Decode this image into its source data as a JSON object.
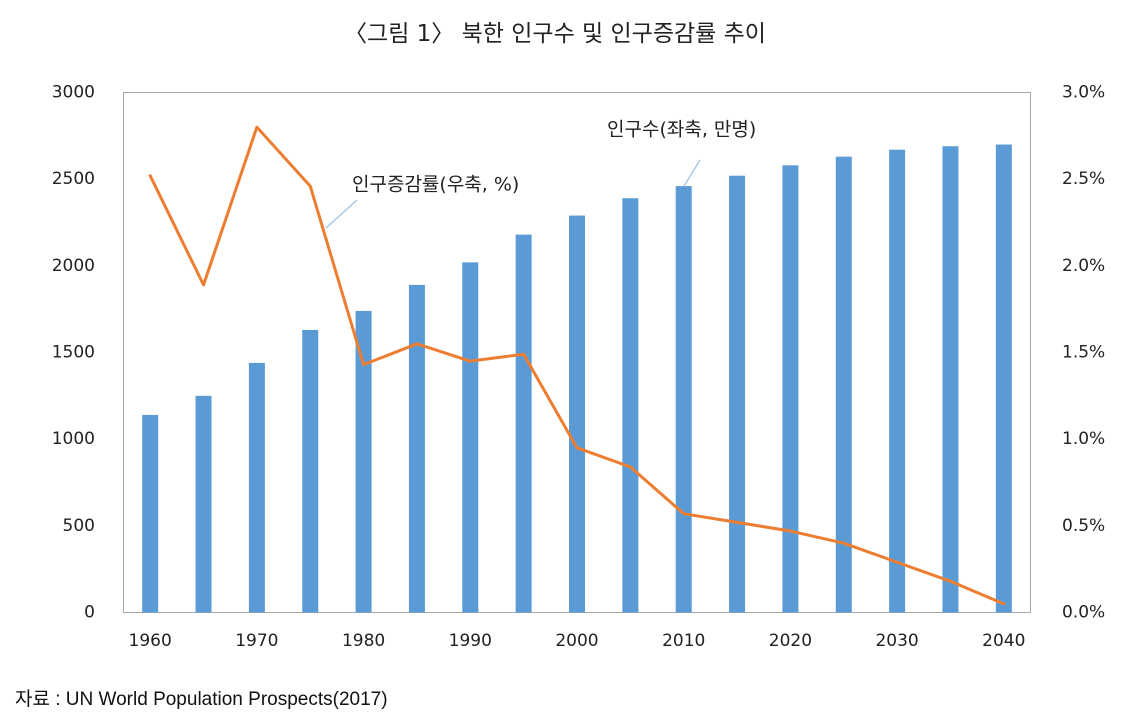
{
  "chart_data": {
    "type": "bar",
    "title": "〈그림 1〉 북한 인구수 및 인구증감률 추이",
    "x": [
      1960,
      1965,
      1970,
      1975,
      1980,
      1985,
      1990,
      1995,
      2000,
      2005,
      2010,
      2015,
      2020,
      2025,
      2030,
      2035,
      2040
    ],
    "x_ticks": [
      "1960",
      "1970",
      "1980",
      "1990",
      "2000",
      "2010",
      "2020",
      "2030",
      "2040"
    ],
    "series": [
      {
        "name": "인구수(좌축, 만명)",
        "type": "bar",
        "axis": "left",
        "color": "#5B9BD5",
        "values": [
          1140,
          1250,
          1440,
          1630,
          1740,
          1890,
          2020,
          2180,
          2290,
          2390,
          2460,
          2520,
          2580,
          2630,
          2670,
          2690,
          2700
        ]
      },
      {
        "name": "인구증감률(우축, %)",
        "type": "line",
        "axis": "right",
        "color": "#ED7D31",
        "values": [
          2.52,
          1.89,
          2.8,
          2.46,
          1.43,
          1.55,
          1.45,
          1.49,
          0.95,
          0.84,
          0.57,
          0.52,
          0.47,
          0.4,
          0.29,
          0.18,
          0.05
        ]
      }
    ],
    "y_left": {
      "lim": [
        0,
        3000
      ],
      "ticks": [
        "0",
        "500",
        "1000",
        "1500",
        "2000",
        "2500",
        "3000"
      ]
    },
    "y_right": {
      "lim": [
        0,
        3
      ],
      "ticks": [
        "0.0%",
        "0.5%",
        "1.0%",
        "1.5%",
        "2.0%",
        "2.5%",
        "3.0%"
      ]
    },
    "grid": false,
    "legend": "none"
  },
  "source": "자료 : UN World Population Prospects(2017)",
  "colors": {
    "frame": "#A6A6A6",
    "leader_line": "#9DC3E6",
    "text": "#222222"
  }
}
